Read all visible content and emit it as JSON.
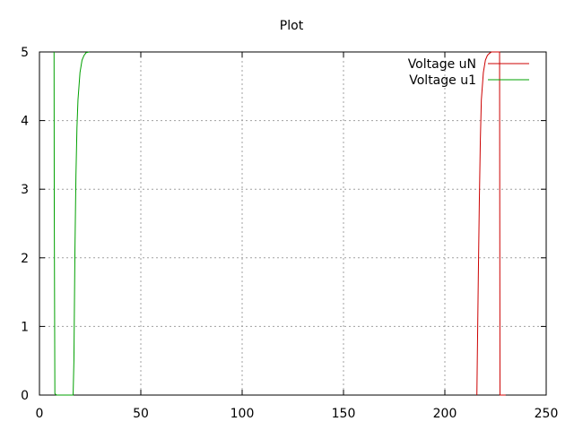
{
  "chart_data": {
    "type": "line",
    "title": "Plot",
    "xlabel": "",
    "ylabel": "",
    "xlim": [
      0,
      250
    ],
    "ylim": [
      0,
      5
    ],
    "x_ticks": [
      0,
      50,
      100,
      150,
      200,
      250
    ],
    "y_ticks": [
      0,
      1,
      2,
      3,
      4,
      5
    ],
    "grid": true,
    "legend_position": "top-right",
    "series": [
      {
        "name": "Voltage uN",
        "color": "#cc0000",
        "points": [
          [
            215.8,
            0.0
          ],
          [
            216.0,
            0.5
          ],
          [
            216.5,
            1.7
          ],
          [
            217.0,
            2.8
          ],
          [
            217.5,
            3.7
          ],
          [
            218.0,
            4.3
          ],
          [
            219.0,
            4.7
          ],
          [
            220.0,
            4.88
          ],
          [
            221.0,
            4.95
          ],
          [
            222.0,
            4.98
          ],
          [
            223.0,
            5.0
          ],
          [
            227.0,
            5.0
          ],
          [
            227.2,
            0.0
          ],
          [
            230.0,
            0.0
          ]
        ]
      },
      {
        "name": "Voltage u1",
        "color": "#00a000",
        "points": [
          [
            7.2,
            5.0
          ],
          [
            7.3,
            2.75
          ],
          [
            7.6,
            0.02
          ],
          [
            8.5,
            0.0
          ],
          [
            16.6,
            0.0
          ],
          [
            17.0,
            0.5
          ],
          [
            17.5,
            2.1
          ],
          [
            18.0,
            3.2
          ],
          [
            18.5,
            3.9
          ],
          [
            19.0,
            4.3
          ],
          [
            20.0,
            4.7
          ],
          [
            21.0,
            4.88
          ],
          [
            22.0,
            4.95
          ],
          [
            23.0,
            4.99
          ],
          [
            24.5,
            5.0
          ]
        ]
      }
    ]
  }
}
